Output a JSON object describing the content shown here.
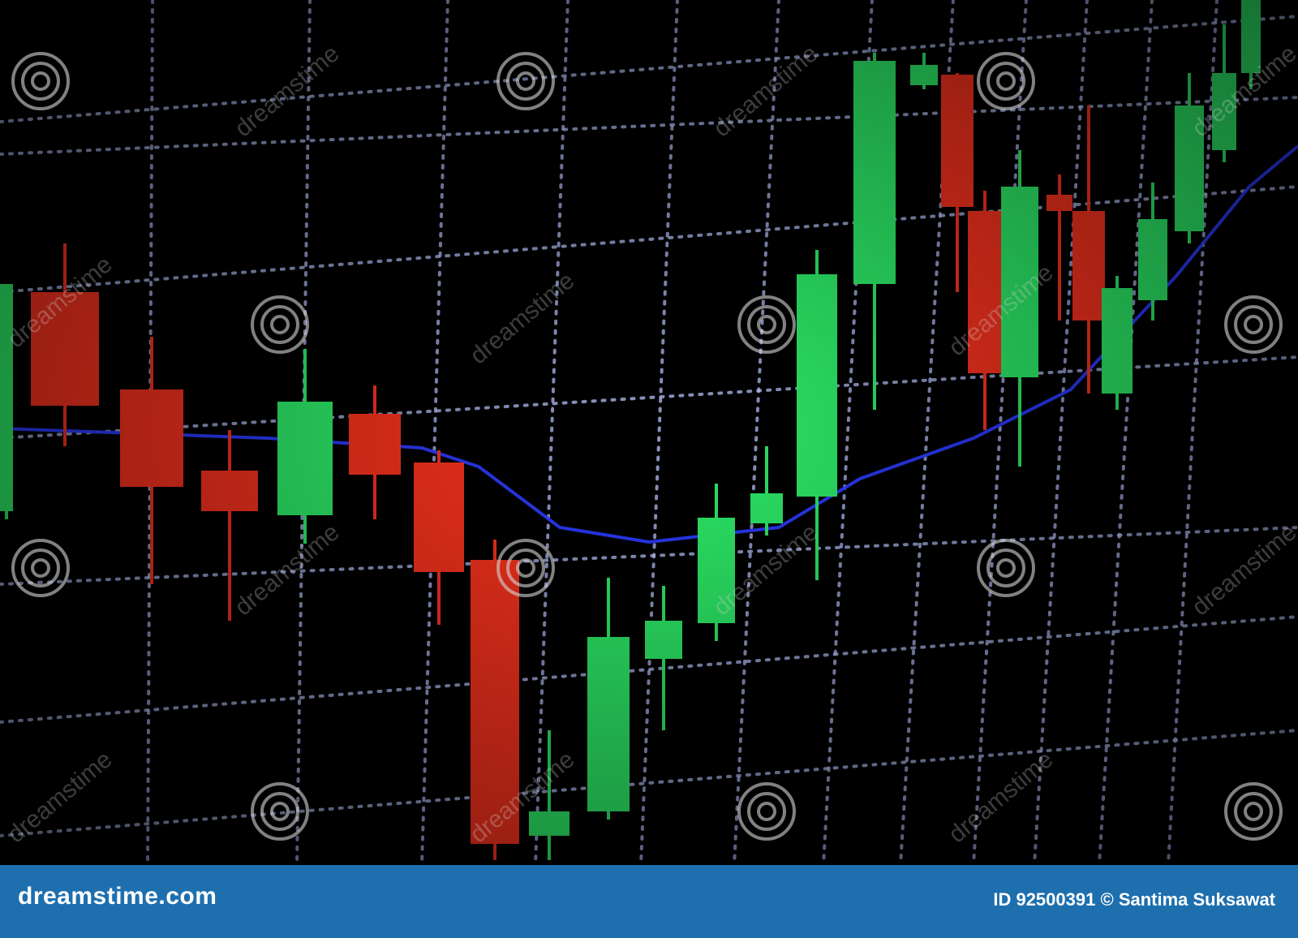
{
  "photo": {
    "subject": "candlestick-chart-screen",
    "colors": {
      "background": "#000000",
      "grid": "#b9c6ff",
      "bullish": "#2ce866",
      "bearish": "#f2311d",
      "moving_average": "#2b3bff"
    }
  },
  "watermark": {
    "icon": "spiral-icon",
    "text": "dreamstime"
  },
  "footer": {
    "logo": "dreamstime.com",
    "id_label": "ID",
    "id": "92500391",
    "copyright_symbol": "©",
    "author": "Santima Suksawat",
    "background": "#1e6fae"
  }
}
